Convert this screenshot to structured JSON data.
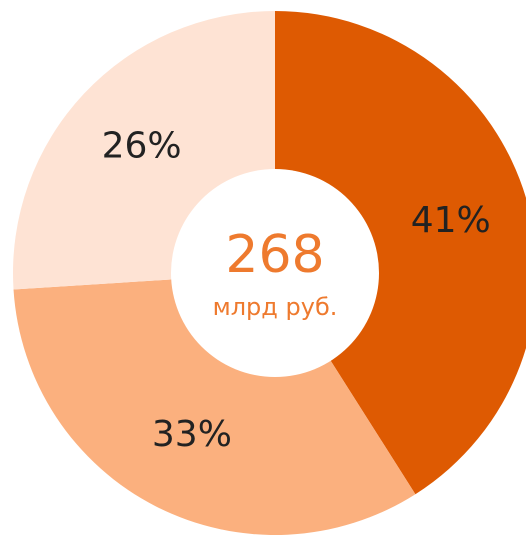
{
  "chart_data": {
    "type": "donut",
    "categories": [
      null,
      null,
      null
    ],
    "values": [
      41,
      33,
      26
    ],
    "value_labels": [
      "41%",
      "33%",
      "26%"
    ],
    "colors": [
      "#de5a02",
      "#fbb07e",
      "#fee3d4"
    ],
    "center_value": 268,
    "center_unit": "млрд руб."
  }
}
